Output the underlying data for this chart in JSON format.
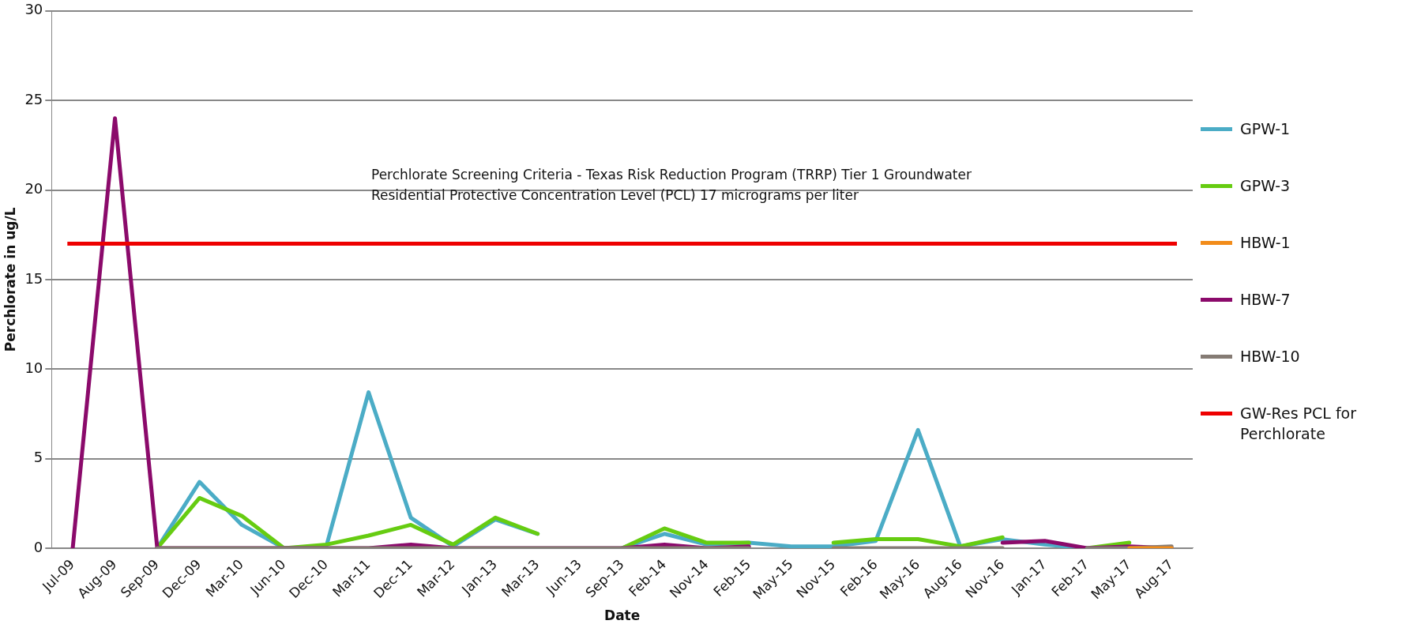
{
  "chart_data": {
    "type": "line",
    "xlabel": "Date",
    "ylabel": "Perchlorate in ug/L",
    "categories": [
      "Jul-09",
      "Aug-09",
      "Sep-09",
      "Dec-09",
      "Mar-10",
      "Jun-10",
      "Dec-10",
      "Mar-11",
      "Dec-11",
      "Mar-12",
      "Jan-13",
      "Mar-13",
      "Jun-13",
      "Sep-13",
      "Feb-14",
      "Nov-14",
      "Feb-15",
      "May-15",
      "Nov-15",
      "Feb-16",
      "May-16",
      "Aug-16",
      "Nov-16",
      "Jan-17",
      "Feb-17",
      "May-17",
      "Aug-17"
    ],
    "series": [
      {
        "name": "GPW-1",
        "color": "#4bacc6",
        "values": [
          null,
          null,
          0,
          3.7,
          1.3,
          0,
          0.1,
          8.7,
          1.7,
          0.1,
          1.6,
          0.8,
          null,
          0,
          0.8,
          0.2,
          0.3,
          0.1,
          0.1,
          0.4,
          6.6,
          0.1,
          0.5,
          0.2,
          0,
          null,
          null
        ]
      },
      {
        "name": "GPW-3",
        "color": "#66cc11",
        "values": [
          null,
          null,
          0,
          2.8,
          1.8,
          0,
          0.2,
          0.7,
          1.3,
          0.2,
          1.7,
          0.8,
          null,
          0,
          1.1,
          0.3,
          0.3,
          null,
          0.3,
          0.5,
          0.5,
          0.1,
          0.6,
          null,
          0,
          0.3,
          null
        ]
      },
      {
        "name": "HBW-1",
        "color": "#f28c1a",
        "values": [
          null,
          null,
          null,
          null,
          null,
          null,
          null,
          null,
          null,
          null,
          null,
          null,
          null,
          null,
          null,
          null,
          null,
          null,
          null,
          null,
          null,
          null,
          null,
          null,
          null,
          0,
          0
        ]
      },
      {
        "name": "HBW-7",
        "color": "#8b0a6b",
        "values": [
          0,
          24,
          0,
          0,
          0,
          0,
          0,
          0,
          0.2,
          0,
          0,
          0,
          0,
          0,
          0.2,
          0,
          0.1,
          null,
          null,
          null,
          null,
          null,
          0.3,
          0.4,
          0,
          0.1,
          0
        ]
      },
      {
        "name": "HBW-10",
        "color": "#857b74",
        "values": [
          null,
          null,
          0,
          0,
          0,
          0,
          0,
          0,
          0,
          0,
          0,
          0,
          0,
          0,
          0,
          0,
          0,
          null,
          0,
          0,
          0,
          0,
          0,
          null,
          0,
          0,
          0.1
        ]
      }
    ],
    "ref_lines": [
      {
        "axis": "y",
        "value": 17,
        "label": "GW-Res PCL for Perchlorate",
        "color": "#ee0000"
      }
    ],
    "annotations": [
      "Perchlorate Screening Criteria - Texas Risk Reduction Program (TRRP) Tier 1 Groundwater Residential Protective Concentration Level (PCL) 17 micrograms per liter"
    ],
    "ylim": [
      0,
      30
    ],
    "yticks": [
      0,
      5,
      10,
      15,
      20,
      25,
      30
    ],
    "grid": "y",
    "legend": "right",
    "marker": "none",
    "line_style": "solid"
  }
}
